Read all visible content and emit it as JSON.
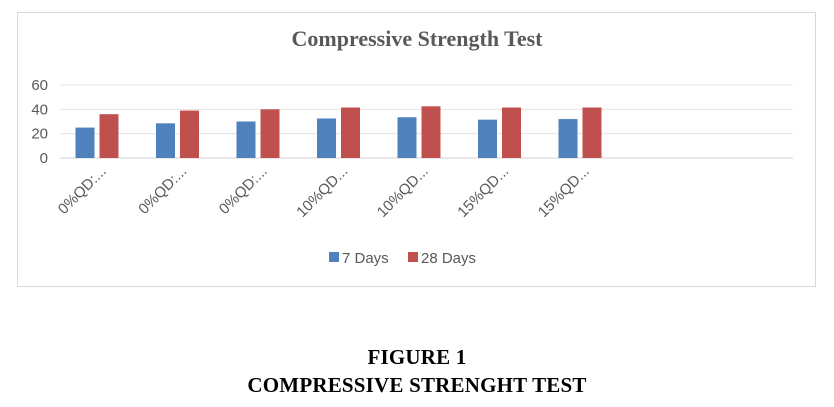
{
  "chart_data": {
    "type": "bar",
    "title": "Compressive Strength Test",
    "categories": [
      "0%QD:...",
      "0%QD:...",
      "0%QD:...",
      "10%QD...",
      "10%QD...",
      "15%QD...",
      "15%QD..."
    ],
    "series": [
      {
        "name": "7 Days",
        "color": "#4f81bd",
        "values": [
          25,
          28.5,
          30,
          32.5,
          33.5,
          31.5,
          32
        ]
      },
      {
        "name": "28 Days",
        "color": "#c0504d",
        "values": [
          36,
          39,
          40,
          41.5,
          42.5,
          41.5,
          41.5
        ]
      }
    ],
    "yticks": [
      0,
      20,
      40,
      60
    ],
    "ylim": [
      0,
      60
    ],
    "grid": true,
    "legend_position": "bottom"
  },
  "caption": {
    "label": "FIGURE 1",
    "title": "COMPRESSIVE STRENGHT TEST"
  }
}
